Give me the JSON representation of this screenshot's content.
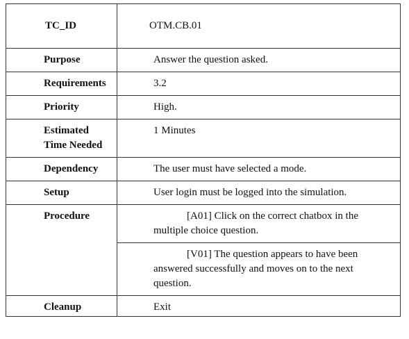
{
  "rows": {
    "tc_id": {
      "label": "TC_ID",
      "value": "OTM.CB.01"
    },
    "purpose": {
      "label": "Purpose",
      "value": "Answer the question asked."
    },
    "requirements": {
      "label": "Requirements",
      "value": "3.2"
    },
    "priority": {
      "label": "Priority",
      "value": "High."
    },
    "estimated_time": {
      "label_line1": "Estimated",
      "label_line2": "Time Needed",
      "value": "1 Minutes"
    },
    "dependency": {
      "label": "Dependency",
      "value": "The user must have selected a mode."
    },
    "setup": {
      "label": "Setup",
      "value": "User login must be logged into the simulation."
    },
    "procedure": {
      "label": "Procedure",
      "steps": [
        "[A01] Click on the correct chatbox in the multiple choice question.",
        "[V01] The question appears to have been answered successfully and moves on to the next question."
      ]
    },
    "cleanup": {
      "label": "Cleanup",
      "value": "Exit"
    }
  }
}
